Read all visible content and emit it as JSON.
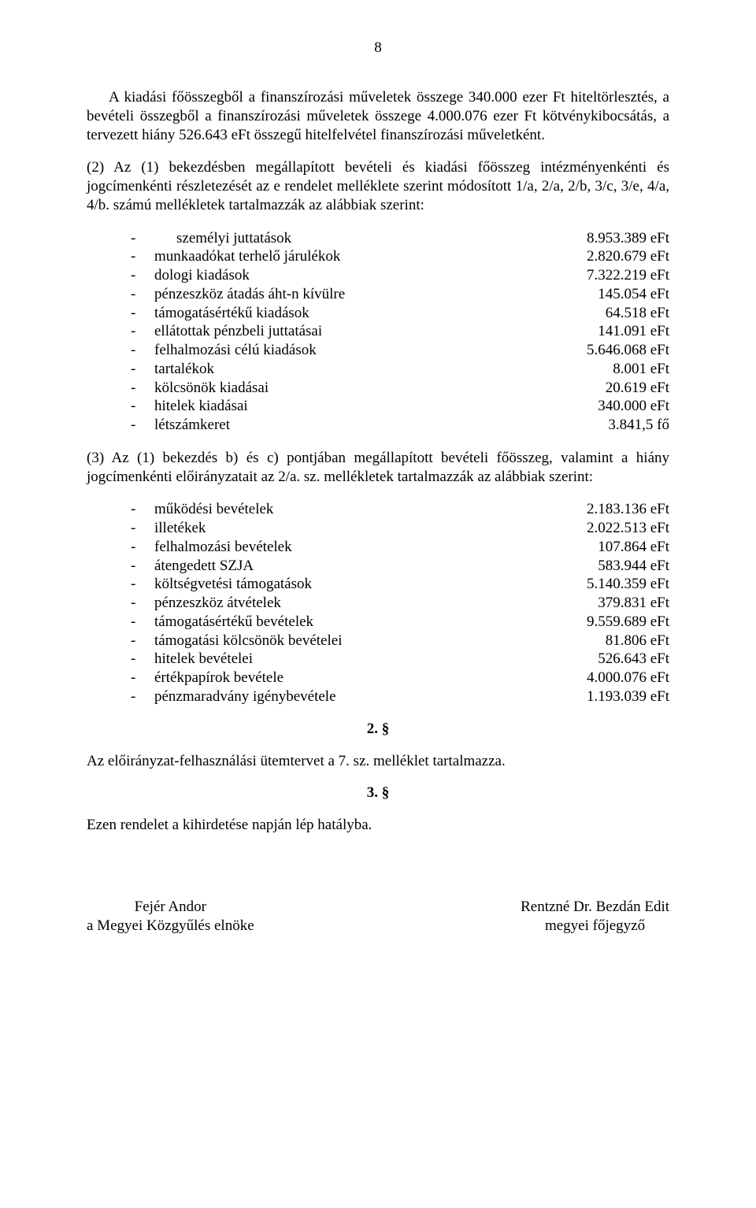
{
  "page_number": "8",
  "para1": "A kiadási főösszegből a finanszírozási műveletek összege 340.000 ezer Ft hiteltörlesztés, a bevételi összegből a finanszírozási műveletek összege 4.000.076 ezer Ft kötvénykibocsátás, a tervezett hiány 526.643 eFt összegű hitelfelvétel finanszírozási műveletként.",
  "para2": "(2) Az (1) bekezdésben megállapított bevételi és kiadási főösszeg intézményenkénti és jogcímenkénti részletezését az e rendelet melléklete szerint módosított 1/a, 2/a, 2/b, 3/c, 3/e, 4/a, 4/b. számú mellékletek tartalmazzák az alábbiak szerint:",
  "list1": [
    {
      "label": "személyi juttatások",
      "value": "8.953.389 eFt",
      "first": true
    },
    {
      "label": "munkaadókat terhelő járulékok",
      "value": "2.820.679 eFt"
    },
    {
      "label": "dologi kiadások",
      "value": "7.322.219 eFt"
    },
    {
      "label": "pénzeszköz átadás áht-n kívülre",
      "value": "145.054 eFt"
    },
    {
      "label": "támogatásértékű kiadások",
      "value": "64.518 eFt"
    },
    {
      "label": "ellátottak pénzbeli juttatásai",
      "value": "141.091 eFt"
    },
    {
      "label": "felhalmozási célú kiadások",
      "value": "5.646.068 eFt"
    },
    {
      "label": "tartalékok",
      "value": "8.001 eFt"
    },
    {
      "label": "kölcsönök kiadásai",
      "value": "20.619 eFt"
    },
    {
      "label": "hitelek kiadásai",
      "value": "340.000 eFt"
    },
    {
      "label": "létszámkeret",
      "value": "3.841,5 fő"
    }
  ],
  "para3": "(3)   Az (1) bekezdés b) és c) pontjában megállapított bevételi főösszeg, valamint a hiány jogcímenkénti előirányzatait az 2/a. sz. mellékletek tartalmazzák az alábbiak szerint:",
  "list2": [
    {
      "label": "működési bevételek",
      "value": "2.183.136 eFt"
    },
    {
      "label": "illetékek",
      "value": "2.022.513 eFt"
    },
    {
      "label": "felhalmozási bevételek",
      "value": "107.864 eFt"
    },
    {
      "label": "átengedett SZJA",
      "value": "583.944 eFt"
    },
    {
      "label": "költségvetési támogatások",
      "value": "5.140.359 eFt"
    },
    {
      "label": "pénzeszköz átvételek",
      "value": "379.831 eFt"
    },
    {
      "label": "támogatásértékű bevételek",
      "value": "9.559.689 eFt"
    },
    {
      "label": "támogatási kölcsönök bevételei",
      "value": "81.806 eFt"
    },
    {
      "label": "hitelek bevételei",
      "value": "526.643 eFt"
    },
    {
      "label": "értékpapírok bevétele",
      "value": "4.000.076 eFt"
    },
    {
      "label": "pénzmaradvány igénybevétele",
      "value": "1.193.039 eFt"
    }
  ],
  "section2_num": "2. §",
  "para4": "Az előirányzat-felhasználási ütemtervet a 7. sz. melléklet tartalmazza.",
  "section3_num": "3. §",
  "para5": "Ezen rendelet a kihirdetése napján lép hatályba.",
  "sig_left_name": "Fejér Andor",
  "sig_left_title": "a Megyei Közgyűlés elnöke",
  "sig_right_name": "Rentzné Dr. Bezdán Edit",
  "sig_right_title": "megyei főjegyző"
}
